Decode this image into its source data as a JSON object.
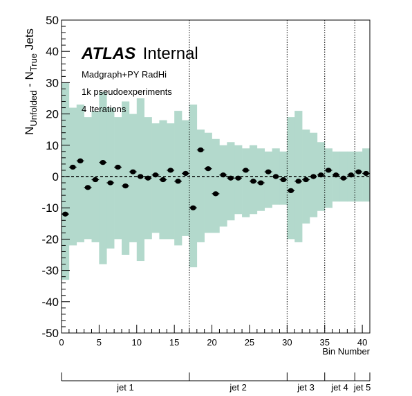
{
  "chart_data": {
    "type": "scatter",
    "title": "",
    "ylabel": "N_{Unfolded} - N_{True} Jets",
    "xlabel": "Bin Number",
    "xlim": [
      0,
      41
    ],
    "ylim": [
      -50,
      50
    ],
    "x_ticks": [
      0,
      5,
      10,
      15,
      20,
      25,
      30,
      35,
      40
    ],
    "y_ticks": [
      -50,
      -40,
      -30,
      -20,
      -10,
      0,
      10,
      20,
      30,
      40,
      50
    ],
    "grid": false,
    "reference_line_y": 0,
    "atlas_label": {
      "bold": "ATLAS",
      "rest": "Internal"
    },
    "annotations": [
      "Madgraph+PY RadHi",
      "1k pseudoexperiments",
      "4 Iterations"
    ],
    "band_color": "#b3d9cc",
    "marker_color": "#000000",
    "jet_boundaries": [
      17,
      30,
      35,
      39
    ],
    "jet_groups": [
      {
        "label": "jet 1",
        "start": 0,
        "end": 17
      },
      {
        "label": "jet 2",
        "start": 17,
        "end": 30
      },
      {
        "label": "jet 3",
        "start": 30,
        "end": 35
      },
      {
        "label": "jet 4",
        "start": 35,
        "end": 39
      },
      {
        "label": "jet 5",
        "start": 39,
        "end": 41
      }
    ],
    "points": {
      "x": [
        0.5,
        1.5,
        2.5,
        3.5,
        4.5,
        5.5,
        6.5,
        7.5,
        8.5,
        9.5,
        10.5,
        11.5,
        12.5,
        13.5,
        14.5,
        15.5,
        16.5,
        17.5,
        18.5,
        19.5,
        20.5,
        21.5,
        22.5,
        23.5,
        24.5,
        25.5,
        26.5,
        27.5,
        28.5,
        29.5,
        30.5,
        31.5,
        32.5,
        33.5,
        34.5,
        35.5,
        36.5,
        37.5,
        38.5,
        39.5,
        40.5
      ],
      "y": [
        -12,
        3,
        5,
        -3.5,
        -1,
        4.5,
        -2,
        3,
        -3,
        1.5,
        0,
        -0.5,
        0.5,
        -1,
        2,
        -1.5,
        1,
        -10,
        8.5,
        2.5,
        -5.5,
        0.5,
        -0.5,
        -0.5,
        2,
        -1.5,
        -2,
        1.5,
        0,
        -1,
        -4.5,
        -1.5,
        -1,
        0,
        0.5,
        2,
        0.5,
        -0.5,
        0.5,
        1.5,
        1
      ],
      "err": [
        0.7,
        0.6,
        0.6,
        0.6,
        0.6,
        0.6,
        0.6,
        0.6,
        0.6,
        0.6,
        0.6,
        0.6,
        0.6,
        0.6,
        0.6,
        0.6,
        0.6,
        0.7,
        0.6,
        0.6,
        0.6,
        0.6,
        0.6,
        0.6,
        0.6,
        0.6,
        0.6,
        0.6,
        0.6,
        0.6,
        0.6,
        0.6,
        0.6,
        0.6,
        0.6,
        0.6,
        0.6,
        0.6,
        0.6,
        0.6,
        0.6
      ]
    },
    "band": {
      "low": [
        -33,
        -22,
        -21,
        -20,
        -21,
        -28,
        -23,
        -20,
        -25,
        -21,
        -27,
        -20,
        -18,
        -20,
        -20,
        -22,
        -19,
        -29,
        -21,
        -18,
        -18,
        -16,
        -14,
        -12,
        -13,
        -12,
        -11,
        -10,
        -9,
        -9,
        -20,
        -21,
        -15,
        -13,
        -11,
        -10,
        -8,
        -8,
        -8,
        -8,
        -8
      ],
      "high": [
        30,
        22,
        23,
        19,
        21,
        27,
        22,
        19,
        24,
        20,
        25,
        19,
        17,
        18,
        17,
        21,
        18,
        23,
        15,
        14,
        12,
        10,
        11,
        10,
        9,
        10,
        9,
        8,
        9,
        8,
        19,
        21,
        15,
        14,
        11,
        9,
        8,
        8,
        8,
        8,
        9
      ]
    }
  }
}
